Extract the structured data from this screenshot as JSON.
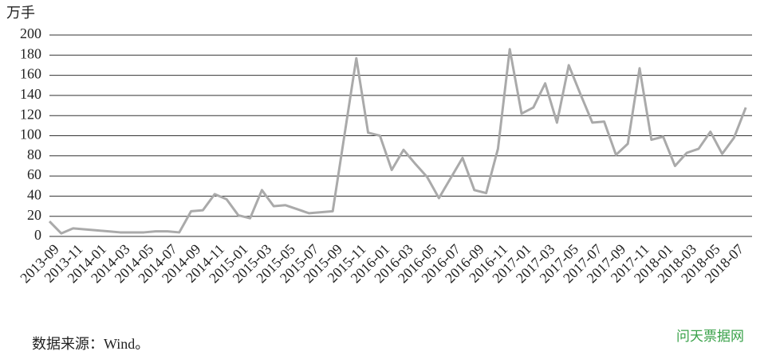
{
  "chart_data": {
    "type": "line",
    "y_label": "万手",
    "x": [
      "2013-09",
      null,
      "2013-11",
      null,
      "2014-01",
      null,
      "2014-03",
      null,
      "2014-05",
      null,
      "2014-07",
      null,
      "2014-09",
      null,
      "2014-11",
      null,
      "2015-01",
      null,
      "2015-03",
      null,
      "2015-05",
      null,
      "2015-07",
      null,
      "2015-09",
      null,
      "2015-11",
      null,
      "2016-01",
      null,
      "2016-03",
      null,
      "2016-05",
      null,
      "2016-07",
      null,
      "2016-09",
      null,
      "2016-11",
      null,
      "2017-01",
      null,
      "2017-03",
      null,
      "2017-05",
      null,
      "2017-07",
      null,
      "2017-09",
      null,
      "2017-11",
      null,
      "2018-01",
      null,
      "2018-03",
      null,
      "2018-05",
      null,
      "2018-07",
      null
    ],
    "series": [
      {
        "color": "#aaaaaa",
        "values": [
          15,
          3,
          8,
          7,
          6,
          5,
          4,
          4,
          4,
          5,
          5,
          4,
          25,
          26,
          42,
          37,
          21,
          18,
          46,
          30,
          31,
          27,
          23,
          24,
          25,
          101,
          177,
          103,
          100,
          66,
          86,
          72,
          59,
          38,
          58,
          78,
          46,
          43,
          87,
          186,
          122,
          128,
          152,
          113,
          170,
          141,
          113,
          114,
          81,
          92,
          167,
          96,
          99,
          70,
          83,
          87,
          104,
          82,
          98,
          128
        ]
      }
    ],
    "ylim": [
      0,
      200
    ],
    "yticks": [
      0,
      20,
      40,
      60,
      80,
      100,
      120,
      140,
      160,
      180,
      200
    ],
    "grid": true,
    "source": "数据来源：Wind。",
    "watermark": "问天票据网"
  }
}
